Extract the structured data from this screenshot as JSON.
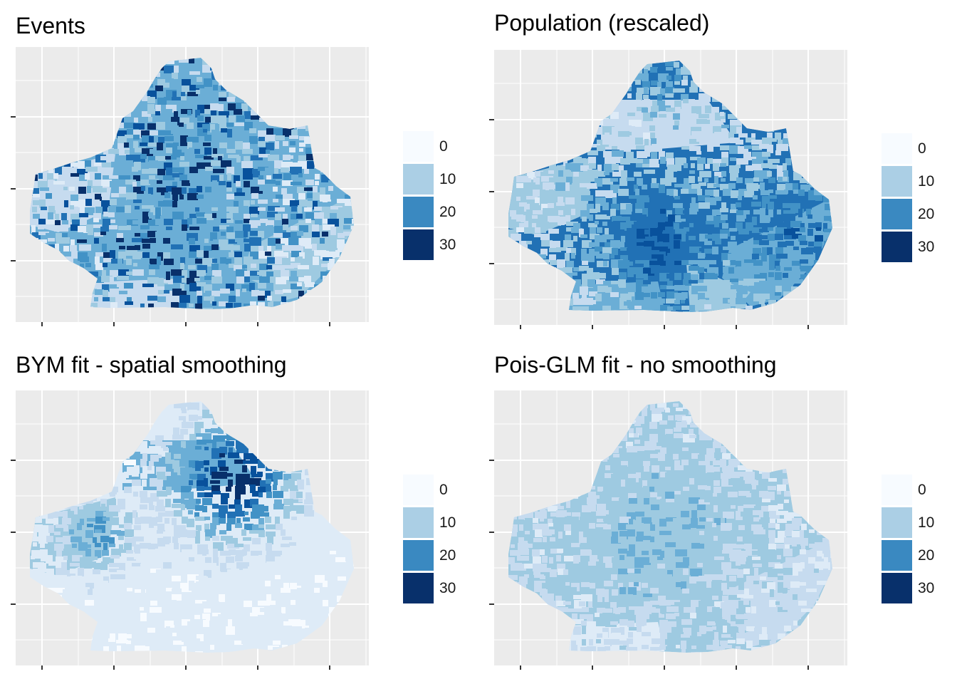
{
  "panels": [
    {
      "id": "events",
      "title": "Events",
      "pattern": "events"
    },
    {
      "id": "population",
      "title": "Population (rescaled)",
      "pattern": "population"
    },
    {
      "id": "bym",
      "title": "BYM fit - spatial smoothing",
      "pattern": "bym"
    },
    {
      "id": "glm",
      "title": "Pois-GLM fit - no smoothing",
      "pattern": "glm"
    }
  ],
  "legend": {
    "labels": [
      "0",
      "10",
      "20",
      "30"
    ],
    "colors": [
      "#f7fbff",
      "#abcfe5",
      "#3a89c1",
      "#08306b"
    ]
  },
  "colors": {
    "panel_background": "#ebebeb",
    "grid": "#ffffff",
    "palette": [
      "#f7fbff",
      "#deebf7",
      "#c6dbef",
      "#9ecae1",
      "#6baed6",
      "#4292c6",
      "#2171b5",
      "#08519c",
      "#08306b"
    ]
  }
}
